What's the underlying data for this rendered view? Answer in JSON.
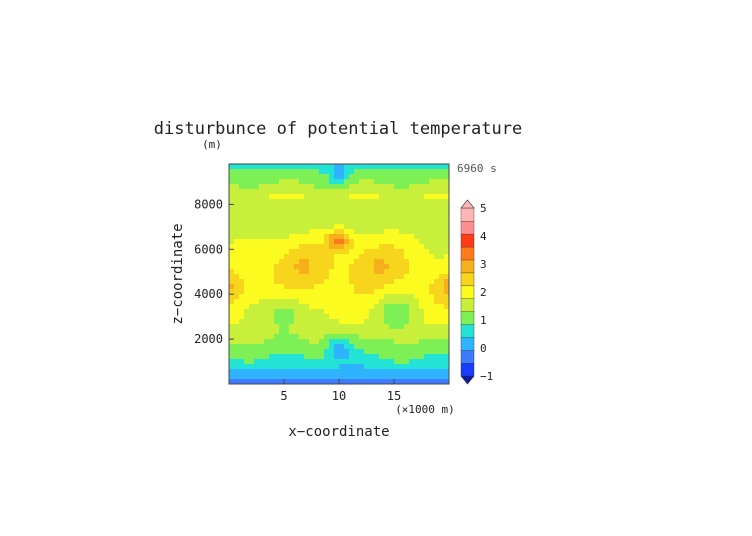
{
  "chart_data": {
    "type": "heatmap",
    "title": "disturbunce of potential temperature",
    "xlabel": "x−coordinate",
    "ylabel": "z−coordinate",
    "x_unit_label": "(×1000 m)",
    "y_unit_label": "(m)",
    "time_label": "6960 s",
    "xlim": [
      0,
      20
    ],
    "ylim": [
      0,
      9800
    ],
    "x_ticks": [
      "5",
      "10",
      "15"
    ],
    "x_tick_values": [
      5,
      10,
      15
    ],
    "y_ticks": [
      "2000",
      "4000",
      "6000",
      "8000"
    ],
    "y_tick_values": [
      2000,
      4000,
      6000,
      8000
    ],
    "colorbar": {
      "labels": [
        "−1",
        "0",
        "1",
        "2",
        "3",
        "4",
        "5"
      ],
      "label_values": [
        -1,
        0,
        1,
        2,
        3,
        4,
        5
      ],
      "min": -1,
      "max": 5,
      "step": 0.5,
      "extend": "both"
    },
    "colors": [
      "#1a3cff",
      "#3f7bff",
      "#2fb3ff",
      "#22e3d6",
      "#7cf055",
      "#c8f03a",
      "#fbfb20",
      "#f7d51c",
      "#f7b01c",
      "#ff7a1a",
      "#ff3c1a",
      "#ff8f8f",
      "#ffb5b5"
    ],
    "grid": false
  }
}
